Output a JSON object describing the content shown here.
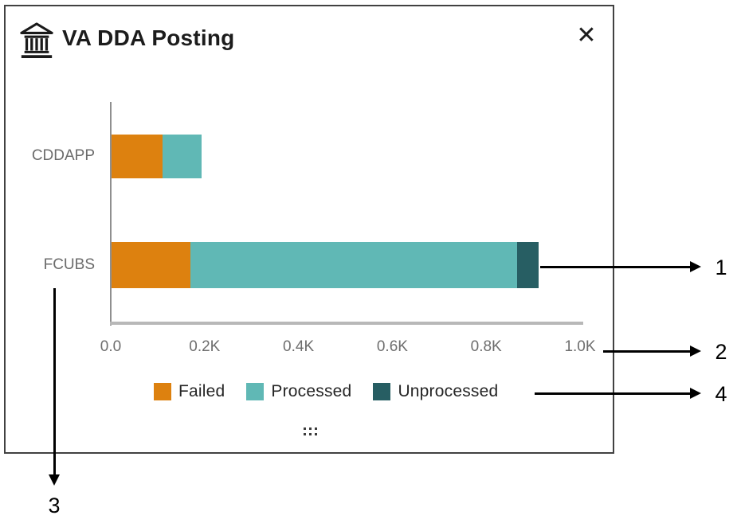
{
  "dialog": {
    "title": "VA DDA Posting",
    "close_glyph": "✕",
    "icons": {
      "header": "bank-icon",
      "close": "close-icon",
      "footer": "grip-dots-icon"
    }
  },
  "chart_data": {
    "type": "bar",
    "orientation": "horizontal",
    "stacked": true,
    "title": "VA DDA Posting",
    "categories": [
      "CDDAPP",
      "FCUBS"
    ],
    "series": [
      {
        "name": "Failed",
        "color": "#DD810F",
        "values": [
          108,
          169
        ]
      },
      {
        "name": "Processed",
        "color": "#60B8B5",
        "values": [
          85,
          696
        ]
      },
      {
        "name": "Unprocessed",
        "color": "#275E63",
        "values": [
          0,
          47
        ]
      }
    ],
    "x_ticks": [
      "0.0",
      "0.2K",
      "0.4K",
      "0.6K",
      "0.8K",
      "1.0K"
    ],
    "xlim": [
      0,
      1000
    ],
    "grid": false,
    "legend_position": "bottom"
  },
  "annotations": {
    "labels": [
      "1",
      "2",
      "3",
      "4"
    ]
  }
}
